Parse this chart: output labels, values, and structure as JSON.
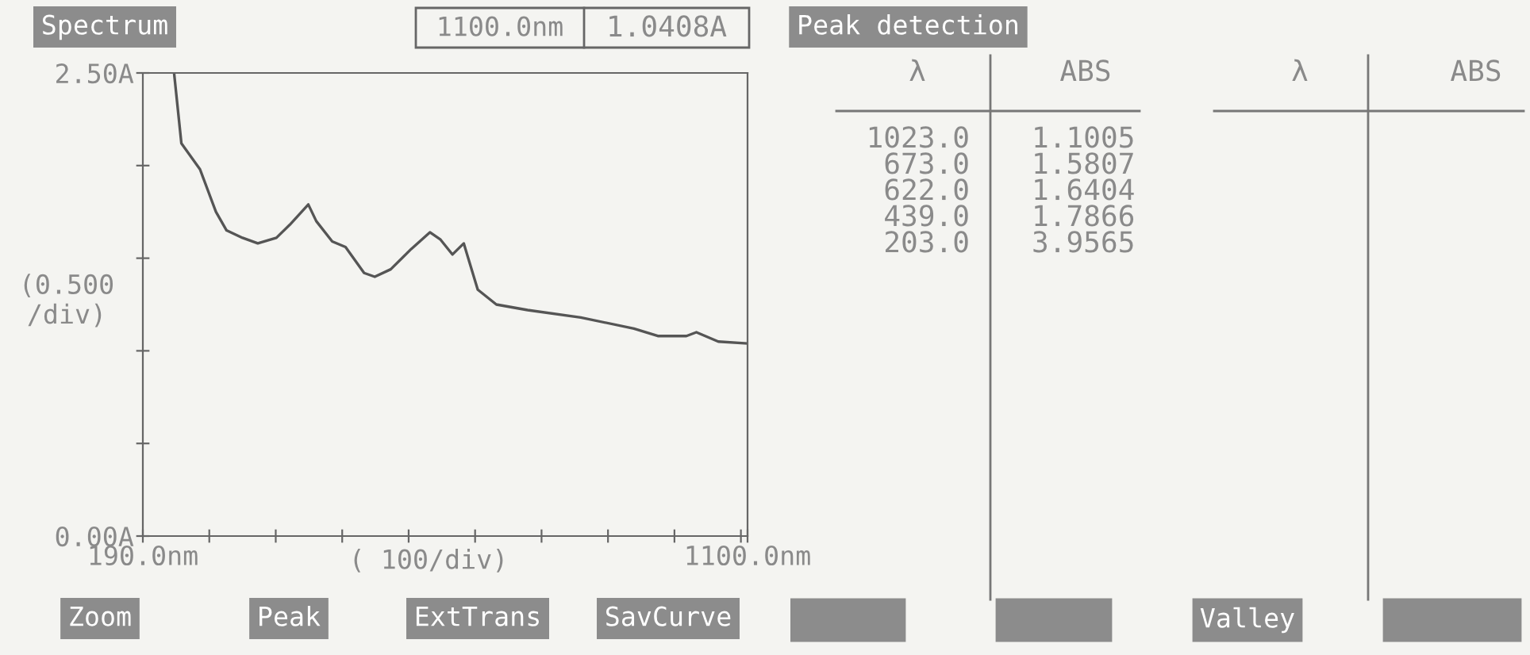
{
  "chart_data": [
    {
      "type": "line",
      "title": "Spectrum",
      "xlabel": "( 100/div)",
      "ylabel": "(0.500\n/div)",
      "annotations": [
        "1100.0nm",
        "1.0408A",
        "Zoom",
        "Peak",
        "ExtTrans",
        "SavCurve"
      ],
      "x": [
        237,
        248,
        276,
        300,
        316,
        340,
        363,
        391,
        411,
        439,
        451,
        475,
        495,
        523,
        539,
        563,
        594,
        622,
        638,
        656,
        673,
        678,
        694,
        722,
        769,
        849,
        929,
        965,
        1008,
        1023,
        1056,
        1100
      ],
      "series": [
        {
          "color": "#555555",
          "values": [
            2.5,
            2.12,
            1.98,
            1.75,
            1.65,
            1.61,
            1.58,
            1.61,
            1.68,
            1.79,
            1.7,
            1.59,
            1.56,
            1.42,
            1.4,
            1.44,
            1.55,
            1.64,
            1.6,
            1.52,
            1.58,
            1.52,
            1.33,
            1.25,
            1.22,
            1.18,
            1.12,
            1.08,
            1.08,
            1.1,
            1.05,
            1.04
          ]
        }
      ],
      "xlim": [
        190,
        1100
      ],
      "ylim": [
        0,
        2.5
      ],
      "xticks": [
        {
          "value": 190,
          "label": "190.0nm"
        },
        {
          "value": 290,
          "label": null
        },
        {
          "value": 390,
          "label": null
        },
        {
          "value": 490,
          "label": null
        },
        {
          "value": 590,
          "label": null
        },
        {
          "value": 690,
          "label": null
        },
        {
          "value": 790,
          "label": null
        },
        {
          "value": 890,
          "label": null
        },
        {
          "value": 990,
          "label": null
        },
        {
          "value": 1090,
          "label": null
        },
        {
          "value": 1100,
          "label": "1100.0nm"
        }
      ],
      "yticks": [
        {
          "value": 0,
          "label": "0.00A"
        },
        {
          "value": 0.5,
          "label": null
        },
        {
          "value": 1.0,
          "label": null
        },
        {
          "value": 1.5,
          "label": null
        },
        {
          "value": 2.0,
          "label": null
        },
        {
          "value": 2.5,
          "label": "2.50A"
        }
      ],
      "grid": false,
      "legend": false
    },
    {
      "type": "other",
      "title": "Peak detection",
      "annotations": [
        "λ",
        "ABS",
        "λ",
        "ABS",
        "1023.0",
        "1.1005",
        "673.0",
        "1.5807",
        "622.0",
        "1.6404",
        "439.0",
        "1.7866",
        "203.0",
        "3.9565",
        "Valley"
      ]
    }
  ]
}
